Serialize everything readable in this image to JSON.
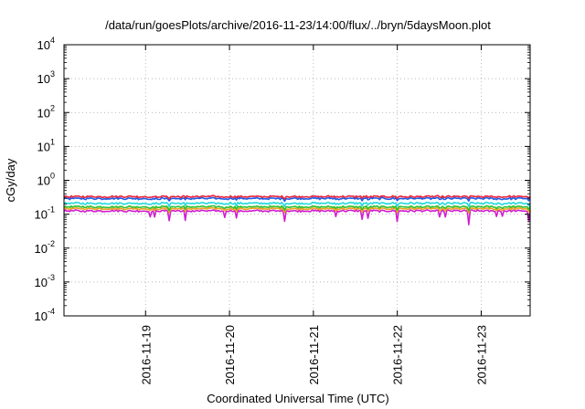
{
  "chart_data": {
    "type": "line",
    "title": "/data/run/goesPlots/archive/2016-11-23/14:00/flux/../bryn/5daysMoon.plot",
    "xlabel": "Coordinated Universal Time (UTC)",
    "ylabel": "cGy/day",
    "yscale": "log",
    "ylim": [
      0.0001,
      10000
    ],
    "y_ticks": [
      {
        "base": "10",
        "exp": "-4",
        "value": 0.0001
      },
      {
        "base": "10",
        "exp": "-3",
        "value": 0.001
      },
      {
        "base": "10",
        "exp": "-2",
        "value": 0.01
      },
      {
        "base": "10",
        "exp": "-1",
        "value": 0.1
      },
      {
        "base": "10",
        "exp": "0",
        "value": 1
      },
      {
        "base": "10",
        "exp": "1",
        "value": 10
      },
      {
        "base": "10",
        "exp": "2",
        "value": 100
      },
      {
        "base": "10",
        "exp": "3",
        "value": 1000
      },
      {
        "base": "10",
        "exp": "4",
        "value": 10000
      }
    ],
    "xlim": [
      "2016-11-18 00:40",
      "2016-11-23 14:00"
    ],
    "x_ticks": [
      "2016-11-19",
      "2016-11-20",
      "2016-11-21",
      "2016-11-22",
      "2016-11-23"
    ],
    "grid": true,
    "series": [
      {
        "color": "#e8243c",
        "level": 0.33,
        "dip_depth": 0.12
      },
      {
        "color": "#1e5ae6",
        "level": 0.29,
        "dip_depth": 0.14
      },
      {
        "color": "#22d8e0",
        "level": 0.21,
        "dip_depth": 0.18
      },
      {
        "color": "#2ec02e",
        "level": 0.165,
        "dip_depth": 0.22
      },
      {
        "color": "#f0a020",
        "level": 0.145,
        "dip_depth": 0.25
      },
      {
        "color": "#d01ed0",
        "level": 0.125,
        "dip_depth": 0.6
      }
    ]
  }
}
